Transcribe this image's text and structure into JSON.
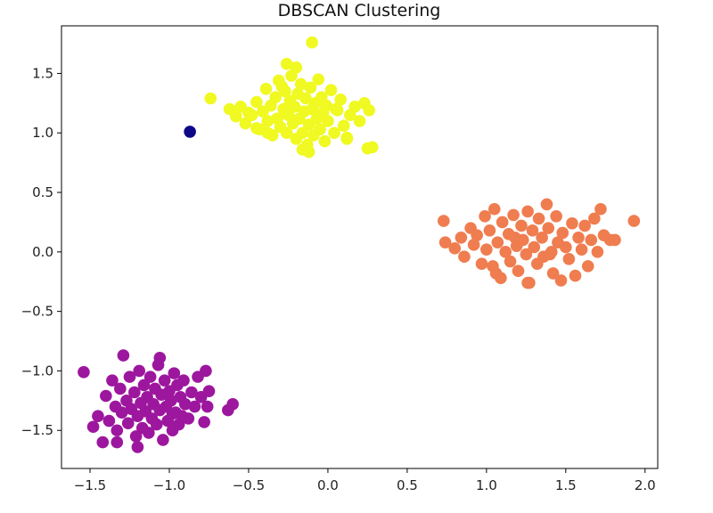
{
  "chart_data": {
    "type": "scatter",
    "title": "DBSCAN Clustering",
    "xlabel": "",
    "ylabel": "",
    "xlim": [
      -1.68,
      2.08
    ],
    "ylim": [
      -1.82,
      1.9
    ],
    "xticks": [
      -1.5,
      -1.0,
      -0.5,
      0.0,
      0.5,
      1.0,
      1.5,
      2.0
    ],
    "xtick_labels": [
      "−1.5",
      "−1.0",
      "−0.5",
      "0.0",
      "0.5",
      "1.0",
      "1.5",
      "2.0"
    ],
    "yticks": [
      -1.5,
      -1.0,
      -0.5,
      0.0,
      0.5,
      1.0,
      1.5
    ],
    "ytick_labels": [
      "−1.5",
      "−1.0",
      "−0.5",
      "0.0",
      "0.5",
      "1.0",
      "1.5"
    ],
    "grid": false,
    "series": [
      {
        "color": "#0d0887",
        "points": [
          [
            -0.87,
            1.01
          ]
        ]
      },
      {
        "color": "#f0f921",
        "points": [
          [
            -0.74,
            1.29
          ],
          [
            -0.62,
            1.2
          ],
          [
            -0.58,
            1.14
          ],
          [
            -0.55,
            1.22
          ],
          [
            -0.52,
            1.08
          ],
          [
            -0.48,
            1.15
          ],
          [
            -0.45,
            1.26
          ],
          [
            -0.43,
            1.03
          ],
          [
            -0.41,
            1.18
          ],
          [
            -0.39,
            1.37
          ],
          [
            -0.38,
            1.1
          ],
          [
            -0.36,
            1.23
          ],
          [
            -0.35,
            0.98
          ],
          [
            -0.33,
            1.3
          ],
          [
            -0.32,
            1.12
          ],
          [
            -0.31,
            1.44
          ],
          [
            -0.3,
            1.05
          ],
          [
            -0.28,
            1.2
          ],
          [
            -0.27,
            1.35
          ],
          [
            -0.26,
            1.0
          ],
          [
            -0.25,
            1.15
          ],
          [
            -0.24,
            1.27
          ],
          [
            -0.23,
            1.48
          ],
          [
            -0.22,
            1.08
          ],
          [
            -0.21,
            1.22
          ],
          [
            -0.2,
            0.95
          ],
          [
            -0.19,
            1.33
          ],
          [
            -0.18,
            1.12
          ],
          [
            -0.17,
            1.41
          ],
          [
            -0.16,
            1.0
          ],
          [
            -0.15,
            1.18
          ],
          [
            -0.14,
            1.29
          ],
          [
            -0.13,
            0.9
          ],
          [
            -0.12,
            1.07
          ],
          [
            -0.11,
            1.38
          ],
          [
            -0.1,
            1.2
          ],
          [
            -0.09,
            0.98
          ],
          [
            -0.08,
            1.25
          ],
          [
            -0.07,
            1.12
          ],
          [
            -0.06,
            1.45
          ],
          [
            -0.05,
            1.03
          ],
          [
            -0.04,
            1.3
          ],
          [
            -0.03,
            1.17
          ],
          [
            -0.02,
            0.93
          ],
          [
            -0.01,
            1.23
          ],
          [
            0.0,
            1.1
          ],
          [
            0.02,
            1.36
          ],
          [
            0.04,
            1.0
          ],
          [
            0.06,
            1.19
          ],
          [
            0.08,
            1.28
          ],
          [
            0.1,
            1.06
          ],
          [
            0.12,
            0.95
          ],
          [
            0.14,
            1.15
          ],
          [
            0.17,
            1.22
          ],
          [
            0.2,
            1.1
          ],
          [
            0.23,
            1.25
          ],
          [
            0.26,
            1.19
          ],
          [
            -0.1,
            1.76
          ],
          [
            -0.26,
            1.58
          ],
          [
            -0.2,
            1.55
          ],
          [
            -0.16,
            0.86
          ],
          [
            -0.12,
            0.84
          ],
          [
            0.25,
            0.87
          ],
          [
            0.28,
            0.88
          ],
          [
            0.12,
            0.96
          ],
          [
            0.05,
            1.2
          ],
          [
            -0.45,
            1.04
          ],
          [
            -0.5,
            1.17
          ],
          [
            -0.38,
            1.0
          ],
          [
            -0.29,
            1.39
          ]
        ]
      },
      {
        "color": "#ef7d50",
        "points": [
          [
            0.73,
            0.26
          ],
          [
            0.74,
            0.08
          ],
          [
            0.8,
            0.03
          ],
          [
            0.84,
            0.12
          ],
          [
            0.86,
            -0.04
          ],
          [
            0.9,
            0.2
          ],
          [
            0.92,
            0.06
          ],
          [
            0.94,
            0.14
          ],
          [
            0.97,
            -0.1
          ],
          [
            0.99,
            0.3
          ],
          [
            1.0,
            0.02
          ],
          [
            1.02,
            0.18
          ],
          [
            1.04,
            -0.12
          ],
          [
            1.05,
            0.36
          ],
          [
            1.07,
            0.08
          ],
          [
            1.09,
            -0.22
          ],
          [
            1.1,
            0.25
          ],
          [
            1.12,
            0.0
          ],
          [
            1.14,
            0.15
          ],
          [
            1.15,
            -0.08
          ],
          [
            1.17,
            0.31
          ],
          [
            1.19,
            0.05
          ],
          [
            1.2,
            -0.16
          ],
          [
            1.22,
            0.22
          ],
          [
            1.23,
            0.1
          ],
          [
            1.25,
            -0.02
          ],
          [
            1.26,
            0.34
          ],
          [
            1.27,
            -0.26
          ],
          [
            1.29,
            0.18
          ],
          [
            1.3,
            0.04
          ],
          [
            1.32,
            -0.1
          ],
          [
            1.33,
            0.28
          ],
          [
            1.35,
            0.12
          ],
          [
            1.36,
            -0.04
          ],
          [
            1.38,
            0.4
          ],
          [
            1.39,
            0.2
          ],
          [
            1.41,
            0.0
          ],
          [
            1.42,
            -0.18
          ],
          [
            1.44,
            0.3
          ],
          [
            1.45,
            0.08
          ],
          [
            1.47,
            -0.24
          ],
          [
            1.48,
            0.16
          ],
          [
            1.5,
            0.04
          ],
          [
            1.52,
            -0.06
          ],
          [
            1.54,
            0.24
          ],
          [
            1.56,
            -0.2
          ],
          [
            1.58,
            0.12
          ],
          [
            1.6,
            0.02
          ],
          [
            1.62,
            0.22
          ],
          [
            1.64,
            -0.12
          ],
          [
            1.66,
            0.1
          ],
          [
            1.68,
            0.28
          ],
          [
            1.7,
            0.0
          ],
          [
            1.72,
            0.36
          ],
          [
            1.74,
            0.14
          ],
          [
            1.78,
            0.1
          ],
          [
            1.81,
            0.1
          ],
          [
            1.93,
            0.26
          ],
          [
            1.26,
            -0.26
          ],
          [
            1.06,
            -0.18
          ],
          [
            1.4,
            -0.02
          ],
          [
            1.18,
            0.12
          ]
        ]
      },
      {
        "color": "#9c179e",
        "points": [
          [
            -1.54,
            -1.01
          ],
          [
            -1.48,
            -1.47
          ],
          [
            -1.45,
            -1.38
          ],
          [
            -1.42,
            -1.6
          ],
          [
            -1.4,
            -1.21
          ],
          [
            -1.38,
            -1.42
          ],
          [
            -1.36,
            -1.08
          ],
          [
            -1.34,
            -1.3
          ],
          [
            -1.33,
            -1.5
          ],
          [
            -1.31,
            -1.15
          ],
          [
            -1.3,
            -1.35
          ],
          [
            -1.29,
            -0.87
          ],
          [
            -1.27,
            -1.25
          ],
          [
            -1.26,
            -1.44
          ],
          [
            -1.25,
            -1.05
          ],
          [
            -1.24,
            -1.32
          ],
          [
            -1.22,
            -1.18
          ],
          [
            -1.21,
            -1.55
          ],
          [
            -1.2,
            -1.38
          ],
          [
            -1.19,
            -1.0
          ],
          [
            -1.18,
            -1.27
          ],
          [
            -1.17,
            -1.48
          ],
          [
            -1.16,
            -1.12
          ],
          [
            -1.15,
            -1.34
          ],
          [
            -1.14,
            -1.22
          ],
          [
            -1.13,
            -1.52
          ],
          [
            -1.12,
            -1.05
          ],
          [
            -1.11,
            -1.4
          ],
          [
            -1.1,
            -1.28
          ],
          [
            -1.09,
            -1.15
          ],
          [
            -1.08,
            -1.45
          ],
          [
            -1.07,
            -0.95
          ],
          [
            -1.06,
            -1.33
          ],
          [
            -1.05,
            -1.2
          ],
          [
            -1.04,
            -1.58
          ],
          [
            -1.03,
            -1.08
          ],
          [
            -1.02,
            -1.3
          ],
          [
            -1.01,
            -1.42
          ],
          [
            -1.0,
            -1.17
          ],
          [
            -0.99,
            -1.25
          ],
          [
            -0.98,
            -1.5
          ],
          [
            -0.97,
            -1.02
          ],
          [
            -0.96,
            -1.35
          ],
          [
            -0.95,
            -1.12
          ],
          [
            -0.94,
            -1.45
          ],
          [
            -0.93,
            -1.22
          ],
          [
            -0.92,
            -1.38
          ],
          [
            -0.91,
            -1.08
          ],
          [
            -0.9,
            -1.28
          ],
          [
            -0.88,
            -1.4
          ],
          [
            -0.86,
            -1.18
          ],
          [
            -0.84,
            -1.3
          ],
          [
            -0.82,
            -1.05
          ],
          [
            -0.8,
            -1.22
          ],
          [
            -0.77,
            -1.0
          ],
          [
            -0.76,
            -1.3
          ],
          [
            -0.75,
            -1.17
          ],
          [
            -0.78,
            -1.43
          ],
          [
            -0.63,
            -1.33
          ],
          [
            -0.6,
            -1.28
          ],
          [
            -1.2,
            -1.64
          ],
          [
            -1.33,
            -1.6
          ],
          [
            -1.06,
            -0.89
          ],
          [
            -0.98,
            -1.36
          ]
        ]
      }
    ]
  }
}
